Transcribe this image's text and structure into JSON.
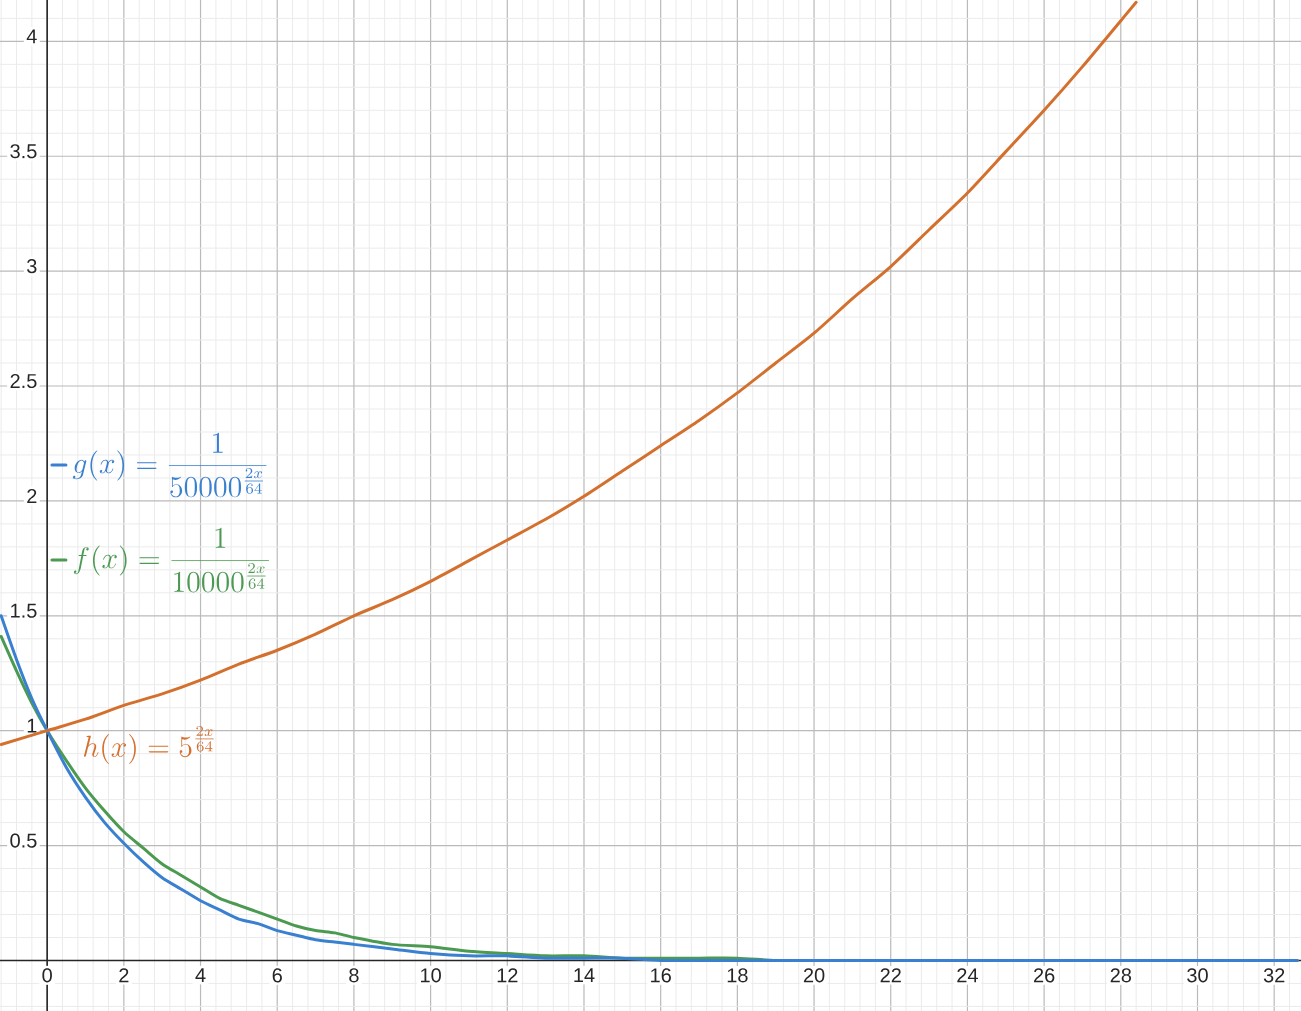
{
  "chart_data": {
    "type": "line",
    "x": [
      -1.2,
      -0.8,
      -0.4,
      0,
      0.5,
      1,
      1.5,
      2,
      2.5,
      3,
      3.5,
      4,
      4.5,
      5,
      5.5,
      6,
      6.5,
      7,
      7.5,
      8,
      9,
      10,
      11,
      12,
      13,
      14,
      15,
      16,
      17,
      18,
      19,
      20,
      22,
      24,
      26,
      28,
      30,
      32.6
    ],
    "series": [
      {
        "name": "f(x) = \\frac{1}{10000^{\\frac{2x}{64}}}",
        "color": "#4c9a52",
        "values": [
          1.41,
          1.26,
          1.12,
          1,
          0.87,
          0.75,
          0.65,
          0.56,
          0.49,
          0.42,
          0.37,
          0.32,
          0.27,
          0.24,
          0.21,
          0.18,
          0.15,
          0.13,
          0.12,
          0.1,
          0.07,
          0.06,
          0.04,
          0.03,
          0.02,
          0.02,
          0.01,
          0.01,
          0.01,
          0.01,
          0,
          0,
          0,
          0,
          0,
          0,
          0,
          0
        ]
      },
      {
        "name": "g(x) = \\frac{1}{50000^{\\frac{2x}{64}}}",
        "color": "#3a80d0",
        "values": [
          1.5,
          1.31,
          1.14,
          1,
          0.84,
          0.71,
          0.6,
          0.51,
          0.43,
          0.36,
          0.31,
          0.26,
          0.22,
          0.18,
          0.16,
          0.13,
          0.11,
          0.09,
          0.08,
          0.07,
          0.05,
          0.03,
          0.02,
          0.02,
          0.01,
          0.01,
          0.01,
          0,
          0,
          0,
          0,
          0,
          0,
          0,
          0,
          0,
          0,
          0
        ]
      },
      {
        "name": "h(x) = 5^{\\frac{2x}{64}}",
        "color": "#d4702e",
        "x": [
          -1.2,
          0,
          1,
          2,
          3,
          4,
          5,
          6,
          7,
          8,
          9,
          10,
          11,
          12,
          13,
          14,
          15,
          16,
          17,
          18,
          19,
          20,
          21,
          22,
          23,
          24,
          25,
          26,
          27,
          28,
          28.4
        ],
        "values": [
          0.94,
          1,
          1.05,
          1.11,
          1.16,
          1.22,
          1.29,
          1.35,
          1.42,
          1.5,
          1.57,
          1.65,
          1.74,
          1.83,
          1.92,
          2.02,
          2.13,
          2.24,
          2.35,
          2.47,
          2.6,
          2.73,
          2.88,
          3.02,
          3.18,
          3.34,
          3.52,
          3.7,
          3.89,
          4.09,
          4.17
        ]
      }
    ],
    "xlim": [
      -1.23,
      32.7
    ],
    "ylim": [
      -0.22,
      4.18
    ],
    "xticks": [
      0,
      2,
      4,
      6,
      8,
      10,
      12,
      14,
      16,
      18,
      20,
      22,
      24,
      26,
      28,
      30,
      32
    ],
    "yticks": [
      0.5,
      1,
      1.5,
      2,
      2.5,
      3,
      3.5,
      4
    ],
    "grid": true,
    "legend": "left"
  }
}
